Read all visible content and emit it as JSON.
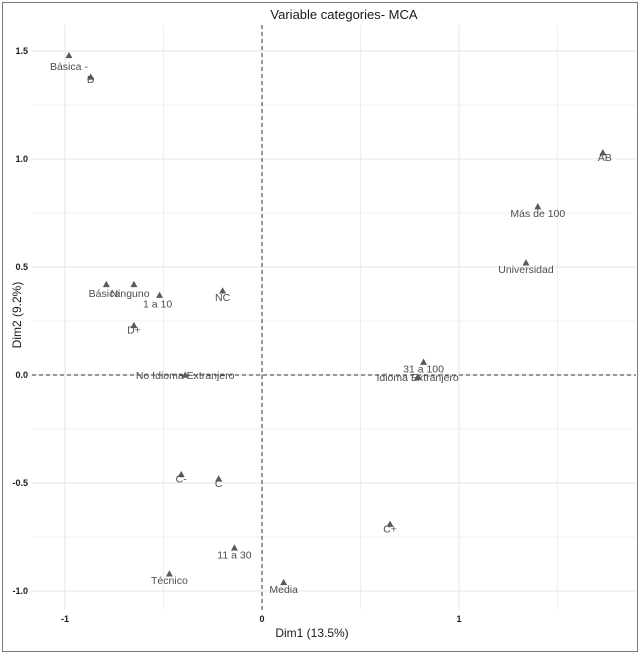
{
  "chart_data": {
    "type": "scatter",
    "title": "Variable categories- MCA",
    "xlabel": "Dim1 (13.5%)",
    "ylabel": "Dim2 (9.2%)",
    "xlim": [
      -1.0,
      1.8
    ],
    "ylim": [
      -1.05,
      1.6
    ],
    "xticks": [
      -1,
      0,
      1
    ],
    "yticks": [
      -1.0,
      -0.5,
      0.0,
      0.5,
      1.0,
      1.5
    ],
    "xtick_labels": [
      "-1",
      "0",
      "1"
    ],
    "ytick_labels": [
      "-1.0",
      "-0.5",
      "0.0",
      "0.5",
      "1.0",
      "1.5"
    ],
    "grid": true,
    "reference_lines": {
      "x": 0,
      "y": 0
    },
    "points": [
      {
        "label": "Básica -",
        "x": -0.98,
        "y": 1.48,
        "dx": 0,
        "dy": 0.05
      },
      {
        "label": "D",
        "x": -0.87,
        "y": 1.38,
        "dx": 0,
        "dy": 0.01
      },
      {
        "label": "AB",
        "x": 1.73,
        "y": 1.03,
        "dx": 0.01,
        "dy": 0.02
      },
      {
        "label": "Más de 100",
        "x": 1.4,
        "y": 0.78,
        "dx": 0,
        "dy": 0.03
      },
      {
        "label": "Universidad",
        "x": 1.34,
        "y": 0.52,
        "dx": 0,
        "dy": 0.03
      },
      {
        "label": "Básica",
        "x": -0.79,
        "y": 0.42,
        "dx": -0.01,
        "dy": 0.04
      },
      {
        "label": "Ninguno",
        "x": -0.65,
        "y": 0.42,
        "dx": -0.02,
        "dy": 0.04
      },
      {
        "label": "1 a 10",
        "x": -0.52,
        "y": 0.37,
        "dx": -0.01,
        "dy": 0.04
      },
      {
        "label": "NC",
        "x": -0.2,
        "y": 0.39,
        "dx": 0,
        "dy": 0.03
      },
      {
        "label": "D+",
        "x": -0.65,
        "y": 0.23,
        "dx": 0,
        "dy": 0.02
      },
      {
        "label": "31 a 100",
        "x": 0.82,
        "y": 0.06,
        "dx": 0,
        "dy": 0.03
      },
      {
        "label": "No Idioma Extranjero",
        "x": -0.39,
        "y": 0.0,
        "dx": 0.0,
        "dy": 0.0
      },
      {
        "label": "Idioma Extranjero",
        "x": 0.79,
        "y": -0.01,
        "dx": 0.0,
        "dy": 0.0
      },
      {
        "label": "C-",
        "x": -0.41,
        "y": -0.46,
        "dx": 0,
        "dy": 0.02
      },
      {
        "label": "C",
        "x": -0.22,
        "y": -0.48,
        "dx": 0,
        "dy": 0.02
      },
      {
        "label": "C+",
        "x": 0.65,
        "y": -0.69,
        "dx": 0,
        "dy": 0.02
      },
      {
        "label": "11 a 30",
        "x": -0.14,
        "y": -0.8,
        "dx": -0.0,
        "dy": 0.03
      },
      {
        "label": "Técnico",
        "x": -0.47,
        "y": -0.92,
        "dx": 0,
        "dy": 0.03
      },
      {
        "label": "Media",
        "x": 0.11,
        "y": -0.96,
        "dx": 0,
        "dy": 0.03
      }
    ]
  }
}
